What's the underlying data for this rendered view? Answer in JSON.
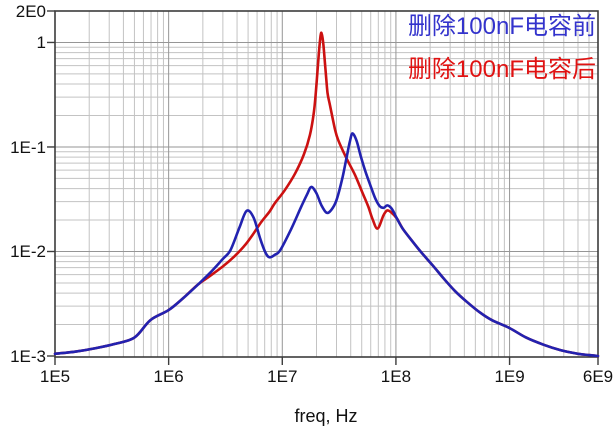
{
  "chart_data": {
    "type": "line",
    "title": "",
    "x_axis": {
      "label": "freq, Hz",
      "scale": "log",
      "min": 100000.0,
      "max": 6000000000.0,
      "ticks": [
        {
          "v": 100000.0,
          "label": "1E5"
        },
        {
          "v": 1000000.0,
          "label": "1E6"
        },
        {
          "v": 10000000.0,
          "label": "1E7"
        },
        {
          "v": 100000000.0,
          "label": "1E8"
        },
        {
          "v": 1000000000.0,
          "label": "1E9"
        },
        {
          "v": 6000000000.0,
          "label": "6E9"
        }
      ]
    },
    "y_axis": {
      "label": "",
      "scale": "log",
      "min": 0.001,
      "max": 2,
      "ticks": [
        {
          "v": 2,
          "label": "2E0"
        },
        {
          "v": 1,
          "label": "1"
        },
        {
          "v": 0.1,
          "label": "1E-1"
        },
        {
          "v": 0.01,
          "label": "1E-2"
        },
        {
          "v": 0.001,
          "label": "1E-3"
        }
      ]
    },
    "grid": {
      "visible": true,
      "major_color": "#969696",
      "minor_color": "#c3c3c3",
      "border_color": "#3c3c3c"
    },
    "legend": {
      "position": "top-right",
      "entries": [
        {
          "label": "删除100nF电容前",
          "color": "#3333cc"
        },
        {
          "label": "删除100nF电容后",
          "color": "#e01212"
        }
      ]
    },
    "series": [
      {
        "name": "删除100nF电容后",
        "color": "#cc1111",
        "points": [
          [
            100000.0,
            0.00105
          ],
          [
            150000.0,
            0.0011
          ],
          [
            220000.0,
            0.00118
          ],
          [
            330000.0,
            0.0013
          ],
          [
            500000.0,
            0.0015
          ],
          [
            690000.0,
            0.0022
          ],
          [
            1000000.0,
            0.00275
          ],
          [
            1350000.0,
            0.0036
          ],
          [
            1800000.0,
            0.0048
          ],
          [
            2300000.0,
            0.0058
          ],
          [
            3000000.0,
            0.0072
          ],
          [
            3800000.0,
            0.009
          ],
          [
            4700000.0,
            0.0115
          ],
          [
            5500000.0,
            0.0145
          ],
          [
            6500000.0,
            0.019
          ],
          [
            7700000.0,
            0.024
          ],
          [
            8600000.0,
            0.029
          ],
          [
            10500000.0,
            0.0385
          ],
          [
            13000000.0,
            0.056
          ],
          [
            15500000.0,
            0.085
          ],
          [
            17500000.0,
            0.13
          ],
          [
            19000000.0,
            0.22
          ],
          [
            20000000.0,
            0.4
          ],
          [
            21000000.0,
            0.8
          ],
          [
            21700000.0,
            1.15
          ],
          [
            22200000.0,
            1.22
          ],
          [
            23000000.0,
            0.95
          ],
          [
            24000000.0,
            0.55
          ],
          [
            25000000.0,
            0.33
          ],
          [
            26300000.0,
            0.25
          ],
          [
            29000000.0,
            0.15
          ],
          [
            31000000.0,
            0.117
          ],
          [
            36300000.0,
            0.08
          ],
          [
            43600000.0,
            0.054
          ],
          [
            50500000.0,
            0.037
          ],
          [
            57000000.0,
            0.027
          ],
          [
            62000000.0,
            0.0207
          ],
          [
            69000000.0,
            0.0166
          ],
          [
            78000000.0,
            0.0224
          ],
          [
            84000000.0,
            0.0247
          ],
          [
            91000000.0,
            0.0236
          ],
          [
            102000000.0,
            0.0207
          ],
          [
            115000000.0,
            0.0165
          ],
          [
            140000000.0,
            0.0125
          ],
          [
            170000000.0,
            0.0096
          ],
          [
            210000000.0,
            0.0074
          ],
          [
            260000000.0,
            0.0056
          ],
          [
            330000000.0,
            0.0042
          ],
          [
            420000000.0,
            0.0033
          ],
          [
            550000000.0,
            0.0026
          ],
          [
            700000000.0,
            0.0022
          ],
          [
            1000000000.0,
            0.00185
          ],
          [
            1400000000.0,
            0.0015
          ],
          [
            2000000000.0,
            0.00128
          ],
          [
            2800000000.0,
            0.00114
          ],
          [
            4000000000.0,
            0.00105
          ],
          [
            5000000000.0,
            0.00102
          ],
          [
            6000000000.0,
            0.001
          ]
        ]
      },
      {
        "name": "删除100nF电容前",
        "color": "#2222b0",
        "points": [
          [
            100000.0,
            0.00105
          ],
          [
            150000.0,
            0.0011
          ],
          [
            220000.0,
            0.00118
          ],
          [
            330000.0,
            0.0013
          ],
          [
            500000.0,
            0.0015
          ],
          [
            690000.0,
            0.0022
          ],
          [
            1000000.0,
            0.00275
          ],
          [
            1350000.0,
            0.0036
          ],
          [
            1800000.0,
            0.0048
          ],
          [
            2300000.0,
            0.0062
          ],
          [
            3000000.0,
            0.0085
          ],
          [
            3500000.0,
            0.0103
          ],
          [
            4200000.0,
            0.017
          ],
          [
            4860000.0,
            0.0245
          ],
          [
            5600000.0,
            0.021
          ],
          [
            6400000.0,
            0.0132
          ],
          [
            7100000.0,
            0.0098
          ],
          [
            7700000.0,
            0.0088
          ],
          [
            8600000.0,
            0.0093
          ],
          [
            9600000.0,
            0.0103
          ],
          [
            12000000.0,
            0.0165
          ],
          [
            14500000.0,
            0.026
          ],
          [
            16500000.0,
            0.035
          ],
          [
            18000000.0,
            0.0415
          ],
          [
            20000000.0,
            0.036
          ],
          [
            22000000.0,
            0.028
          ],
          [
            24500000.0,
            0.0235
          ],
          [
            27000000.0,
            0.025
          ],
          [
            30000000.0,
            0.031
          ],
          [
            34000000.0,
            0.052
          ],
          [
            37000000.0,
            0.082
          ],
          [
            39500000.0,
            0.115
          ],
          [
            41500000.0,
            0.135
          ],
          [
            45000000.0,
            0.115
          ],
          [
            49000000.0,
            0.082
          ],
          [
            54000000.0,
            0.058
          ],
          [
            60000000.0,
            0.042
          ],
          [
            66000000.0,
            0.032
          ],
          [
            72000000.0,
            0.0272
          ],
          [
            78000000.0,
            0.0262
          ],
          [
            84000000.0,
            0.0276
          ],
          [
            92000000.0,
            0.0256
          ],
          [
            102000000.0,
            0.0207
          ],
          [
            115000000.0,
            0.0165
          ],
          [
            140000000.0,
            0.0125
          ],
          [
            170000000.0,
            0.0096
          ],
          [
            210000000.0,
            0.0074
          ],
          [
            260000000.0,
            0.0056
          ],
          [
            330000000.0,
            0.0042
          ],
          [
            420000000.0,
            0.0033
          ],
          [
            550000000.0,
            0.0026
          ],
          [
            700000000.0,
            0.0022
          ],
          [
            1000000000.0,
            0.00185
          ],
          [
            1400000000.0,
            0.0015
          ],
          [
            2000000000.0,
            0.00128
          ],
          [
            2800000000.0,
            0.00114
          ],
          [
            4000000000.0,
            0.00105
          ],
          [
            5000000000.0,
            0.00102
          ],
          [
            6000000000.0,
            0.001
          ]
        ]
      }
    ]
  }
}
